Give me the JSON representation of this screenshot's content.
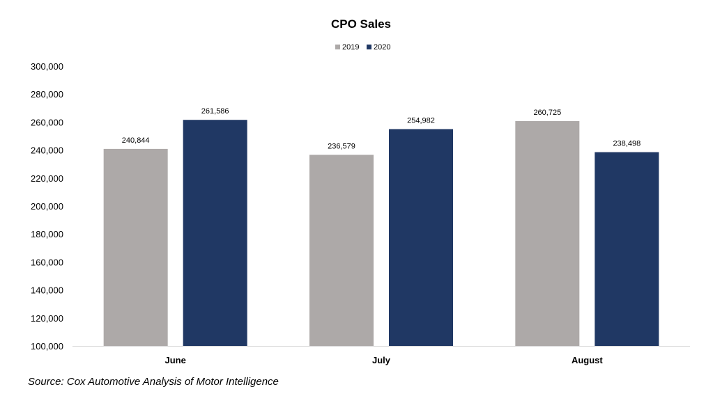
{
  "chart_data": {
    "type": "bar",
    "title": "CPO Sales",
    "xlabel": "",
    "ylabel": "",
    "categories": [
      "June",
      "July",
      "August"
    ],
    "series": [
      {
        "name": "2019",
        "values": [
          240844,
          236579,
          260725
        ],
        "labels": [
          "240,844",
          "236,579",
          "260,725"
        ],
        "color": "#ADA9A8"
      },
      {
        "name": "2020",
        "values": [
          261586,
          254982,
          238498
        ],
        "labels": [
          "261,586",
          "254,982",
          "238,498"
        ],
        "color": "#203864"
      }
    ],
    "ylim": [
      100000,
      300000
    ],
    "yticks": [
      100000,
      120000,
      140000,
      160000,
      180000,
      200000,
      220000,
      240000,
      260000,
      280000,
      300000
    ],
    "ytick_labels": [
      "100,000",
      "120,000",
      "140,000",
      "160,000",
      "180,000",
      "200,000",
      "220,000",
      "240,000",
      "260,000",
      "280,000",
      "300,000"
    ],
    "grid": false,
    "legend": "top-center"
  },
  "source": "Source: Cox Automotive Analysis of Motor Intelligence"
}
